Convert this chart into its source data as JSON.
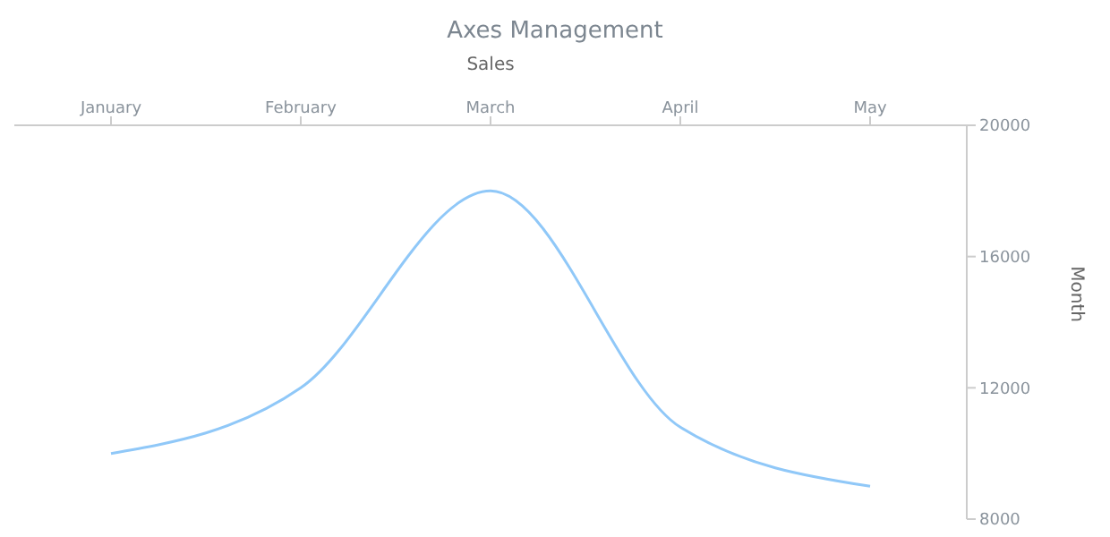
{
  "chart_data": {
    "type": "line",
    "title": "Axes Management",
    "xlabel": "Sales",
    "ylabel": "Month",
    "categories": [
      "January",
      "February",
      "March",
      "April",
      "May"
    ],
    "series": [
      {
        "color": "#90c8f8",
        "values": [
          10000,
          12000,
          18000,
          10800,
          9000
        ]
      }
    ],
    "ylim": [
      8000,
      20000
    ],
    "yticks": [
      8000,
      12000,
      16000,
      20000
    ],
    "grid": false,
    "legend": false,
    "marker": "none",
    "line_style": "solid"
  }
}
